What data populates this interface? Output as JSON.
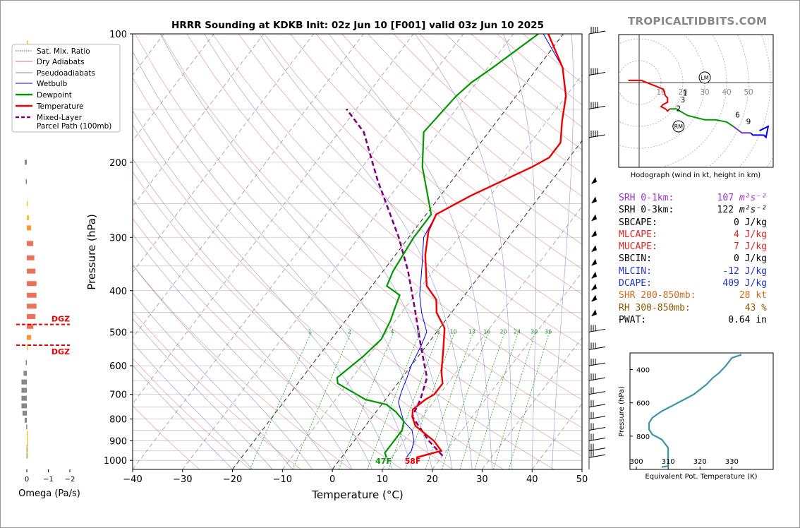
{
  "title": "HRRR Sounding at KDKB Init: 02z Jun 10 [F001] valid 03z Jun 10 2025",
  "brand": "TROPICALTIDBITS.COM",
  "colors": {
    "temperature": "#ee0000",
    "dewpoint": "#009900",
    "wetbulb": "#0000ee",
    "parcel": "#800080",
    "dry": "#e07070",
    "moist": "#7070d0",
    "mix": "#009900"
  },
  "chart_data": [
    {
      "type": "line",
      "name": "skewt",
      "title": "HRRR Sounding at KDKB Init: 02z Jun 10 [F001] valid 03z Jun 10 2025",
      "xlabel": "Temperature (°C)",
      "ylabel": "Pressure (hPa)",
      "xlim": [
        -40,
        50
      ],
      "ylim": [
        1050,
        100
      ],
      "y_scale": "log",
      "x_ticks": [
        "−40",
        "−30",
        "−20",
        "−10",
        "0",
        "10",
        "20",
        "30",
        "40",
        "50"
      ],
      "y_ticks": [
        "100",
        "200",
        "300",
        "400",
        "500",
        "600",
        "700",
        "800",
        "900",
        "1000"
      ],
      "legend": [
        "Sat. Mix. Ratio",
        "Dry Adiabats",
        "Pseudoadiabats",
        "Wetbulb",
        "Dewpoint",
        "Temperature",
        "Mixed-Layer Parcel Path (100mb)"
      ],
      "mixing_ratio_labels": [
        "1",
        "2",
        "4",
        "6",
        "8",
        "10",
        "13",
        "16",
        "20",
        "24",
        "30",
        "36"
      ],
      "surface_labels": {
        "dewpoint": "47F",
        "temperature": "58F"
      },
      "series": [
        {
          "name": "Temperature",
          "points": [
            [
              15,
              985
            ],
            [
              19,
              950
            ],
            [
              16,
              900
            ],
            [
              10,
              830
            ],
            [
              8,
              790
            ],
            [
              7,
              760
            ],
            [
              8,
              720
            ],
            [
              9,
              700
            ],
            [
              9,
              660
            ],
            [
              7,
              620
            ],
            [
              4,
              550
            ],
            [
              1,
              490
            ],
            [
              -3,
              450
            ],
            [
              -5,
              420
            ],
            [
              -9,
              390
            ],
            [
              -14,
              330
            ],
            [
              -17,
              290
            ],
            [
              -18,
              265
            ],
            [
              -14,
              240
            ],
            [
              -6,
              205
            ],
            [
              -4,
              195
            ],
            [
              -4,
              180
            ],
            [
              -7,
              160
            ],
            [
              -10,
              140
            ],
            [
              -15,
              120
            ],
            [
              -23,
              100
            ]
          ]
        },
        {
          "name": "Dewpoint",
          "points": [
            [
              9,
              985
            ],
            [
              8,
              960
            ],
            [
              8,
              900
            ],
            [
              8,
              850
            ],
            [
              7,
              810
            ],
            [
              4,
              770
            ],
            [
              1,
              740
            ],
            [
              -4,
              720
            ],
            [
              -12,
              660
            ],
            [
              -13,
              640
            ],
            [
              -11,
              570
            ],
            [
              -10,
              520
            ],
            [
              -11,
              470
            ],
            [
              -12,
              440
            ],
            [
              -13,
              410
            ],
            [
              -17,
              390
            ],
            [
              -18,
              360
            ],
            [
              -19,
              300
            ],
            [
              -19,
              265
            ],
            [
              -28,
              205
            ],
            [
              -33,
              170
            ],
            [
              -32,
              140
            ],
            [
              -31,
              130
            ],
            [
              -29,
              120
            ],
            [
              -25,
              100
            ]
          ]
        },
        {
          "name": "Wetbulb",
          "points": [
            [
              13,
              985
            ],
            [
              13,
              950
            ],
            [
              12,
              900
            ],
            [
              10,
              850
            ],
            [
              7,
              810
            ],
            [
              5,
              770
            ],
            [
              3,
              730
            ],
            [
              2,
              690
            ],
            [
              1,
              640
            ],
            [
              0,
              600
            ],
            [
              -1,
              540
            ],
            [
              -2,
              500
            ],
            [
              -6,
              450
            ],
            [
              -9,
              410
            ],
            [
              -13,
              350
            ],
            [
              -17,
              300
            ],
            [
              -18,
              265
            ],
            [
              -14,
              240
            ],
            [
              -6,
              205
            ],
            [
              -4,
              195
            ],
            [
              -4,
              180
            ],
            [
              -7,
              160
            ],
            [
              -10,
              140
            ],
            [
              -15,
              120
            ],
            [
              -24,
              100
            ]
          ]
        },
        {
          "name": "Mixed-Layer Parcel Path (100mb)",
          "points": [
            [
              20,
              975
            ],
            [
              15,
              900
            ],
            [
              8,
              790
            ],
            [
              7,
              720
            ],
            [
              5,
              640
            ],
            [
              -1,
              540
            ],
            [
              -8,
              440
            ],
            [
              -15,
              360
            ],
            [
              -22,
              300
            ],
            [
              -35,
              220
            ],
            [
              -45,
              170
            ],
            [
              -52,
              150
            ]
          ]
        }
      ]
    },
    {
      "type": "line",
      "name": "hodograph",
      "xlabel": "Hodograph (wind in kt, height in km)",
      "rings": [
        "10",
        "20",
        "30",
        "40",
        "50"
      ],
      "height_labels": [
        "1",
        "2",
        "3",
        "6",
        "9"
      ],
      "markers": [
        "LM",
        "RM"
      ],
      "series": [
        {
          "name": "0-3km",
          "points": [
            [
              -5,
              1
            ],
            [
              1,
              1
            ],
            [
              11,
              -3
            ],
            [
              12,
              -6
            ],
            [
              13,
              -7
            ],
            [
              13,
              -9
            ],
            [
              11,
              -10
            ],
            [
              10,
              -11
            ],
            [
              12,
              -12
            ],
            [
              13,
              -13
            ],
            [
              14,
              -12
            ]
          ]
        },
        {
          "name": "3-6km",
          "points": [
            [
              14,
              -12
            ],
            [
              17,
              -12
            ],
            [
              22,
              -15
            ],
            [
              30,
              -17
            ],
            [
              35,
              -17
            ],
            [
              40,
              -18
            ],
            [
              43,
              -20
            ]
          ]
        },
        {
          "name": "6-9km",
          "points": [
            [
              43,
              -20
            ],
            [
              47,
              -23
            ],
            [
              51,
              -23
            ]
          ]
        },
        {
          "name": "9-12km",
          "points": [
            [
              51,
              -23
            ],
            [
              52,
              -24
            ],
            [
              57,
              -24
            ],
            [
              58,
              -25
            ],
            [
              59,
              -20
            ],
            [
              55,
              -22
            ]
          ]
        }
      ]
    },
    {
      "type": "line",
      "name": "theta-e",
      "xlabel": "Equivalent Pot. Temperature (K)",
      "ylabel": "Pressure (hPa)",
      "xlim": [
        298,
        343
      ],
      "ylim": [
        1000,
        300
      ],
      "x_ticks": [
        "300",
        "310",
        "320",
        "330"
      ],
      "y_ticks": [
        "400",
        "600",
        "800"
      ],
      "series": [
        {
          "name": "theta-e",
          "points": [
            [
              308,
              985
            ],
            [
              310,
              980
            ],
            [
              310,
              920
            ],
            [
              310,
              870
            ],
            [
              308,
              820
            ],
            [
              305,
              790
            ],
            [
              304,
              760
            ],
            [
              304,
              720
            ],
            [
              305,
              690
            ],
            [
              308,
              650
            ],
            [
              312,
              610
            ],
            [
              316,
              570
            ],
            [
              318,
              550
            ],
            [
              320,
              520
            ],
            [
              322,
              490
            ],
            [
              324,
              450
            ],
            [
              326,
              420
            ],
            [
              328,
              380
            ],
            [
              330,
              330
            ],
            [
              333,
              310
            ]
          ]
        }
      ]
    },
    {
      "type": "bar",
      "name": "omega",
      "xlabel": "Omega (Pa/s)",
      "x_ticks": [
        "0",
        "−1",
        "−2"
      ],
      "dgz_label": "DGZ",
      "values": [
        {
          "p": 105,
          "v": -0.03
        },
        {
          "p": 125,
          "v": -0.05
        },
        {
          "p": 145,
          "v": -0.08
        },
        {
          "p": 200,
          "v": 0.1
        },
        {
          "p": 222,
          "v": 0.05
        },
        {
          "p": 250,
          "v": -0.02
        },
        {
          "p": 270,
          "v": -0.1
        },
        {
          "p": 285,
          "v": -0.2
        },
        {
          "p": 310,
          "v": -0.3
        },
        {
          "p": 335,
          "v": -0.35
        },
        {
          "p": 360,
          "v": -0.4
        },
        {
          "p": 385,
          "v": -0.45
        },
        {
          "p": 410,
          "v": -0.45
        },
        {
          "p": 435,
          "v": -0.45
        },
        {
          "p": 460,
          "v": -0.4
        },
        {
          "p": 485,
          "v": -0.3
        },
        {
          "p": 515,
          "v": -0.2
        },
        {
          "p": 545,
          "v": -0.05
        },
        {
          "p": 590,
          "v": 0.05
        },
        {
          "p": 625,
          "v": 0.15
        },
        {
          "p": 655,
          "v": 0.25
        },
        {
          "p": 685,
          "v": 0.25
        },
        {
          "p": 715,
          "v": 0.25
        },
        {
          "p": 745,
          "v": 0.25
        },
        {
          "p": 775,
          "v": 0.2
        },
        {
          "p": 805,
          "v": 0.1
        },
        {
          "p": 835,
          "v": 0.03
        },
        {
          "p": 865,
          "v": -0.02
        },
        {
          "p": 890,
          "v": -0.03
        },
        {
          "p": 915,
          "v": -0.03
        },
        {
          "p": 945,
          "v": -0.02
        },
        {
          "p": 975,
          "v": -0.02
        }
      ]
    }
  ],
  "indices": [
    {
      "label": "SRH 0-1km:",
      "value": "107",
      "unit": "m²s⁻²",
      "color": "#9932cc"
    },
    {
      "label": "SRH 0-3km:",
      "value": "122",
      "unit": "m²s⁻²",
      "color": "#000000"
    },
    {
      "label": "SBCAPE:",
      "value": "0",
      "unit": "J/kg",
      "color": "#000000"
    },
    {
      "label": "MLCAPE:",
      "value": "4",
      "unit": "J/kg",
      "color": "#dd2222"
    },
    {
      "label": "MUCAPE:",
      "value": "7",
      "unit": "J/kg",
      "color": "#dd2222"
    },
    {
      "label": "SBCIN:",
      "value": "0",
      "unit": "J/kg",
      "color": "#000000"
    },
    {
      "label": "MLCIN:",
      "value": "-12",
      "unit": "J/kg",
      "color": "#2233cc"
    },
    {
      "label": "DCAPE:",
      "value": "409",
      "unit": "J/kg",
      "color": "#2233cc"
    },
    {
      "label": "SHR 200-850mb:",
      "value": "28",
      "unit": "kt",
      "color": "#d2691e"
    },
    {
      "label": "RH 300-850mb:",
      "value": "43",
      "unit": "%",
      "color": "#8b5a00"
    },
    {
      "label": "PWAT:",
      "value": "0.64",
      "unit": "in",
      "color": "#000000"
    }
  ]
}
